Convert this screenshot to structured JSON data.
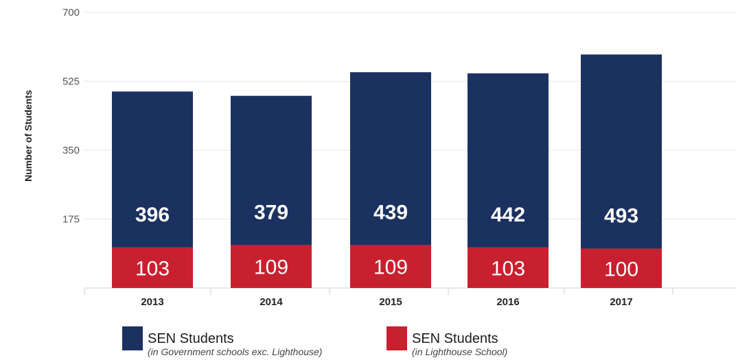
{
  "chart_data": {
    "type": "bar",
    "stacked": true,
    "categories": [
      "2013",
      "2014",
      "2015",
      "2016",
      "2017"
    ],
    "series": [
      {
        "name": "SEN Students",
        "note": "(in Lighthouse School)",
        "color": "#c8202f",
        "values": [
          103,
          109,
          109,
          103,
          100
        ],
        "labels": [
          "103",
          "109",
          "109",
          "103",
          "100"
        ]
      },
      {
        "name": "SEN Students",
        "note": "(in Government schools exc. Lighthouse)",
        "color": "#1b3160",
        "values": [
          396,
          379,
          439,
          442,
          493
        ],
        "labels": [
          "396",
          "379",
          "439",
          "442",
          "493"
        ]
      }
    ],
    "ylabel": "Number of Students",
    "xlabel": "",
    "ylim": [
      0,
      700
    ],
    "yticks": [
      "175",
      "350",
      "525",
      "700"
    ],
    "grid": true,
    "legend_position": "bottom"
  }
}
